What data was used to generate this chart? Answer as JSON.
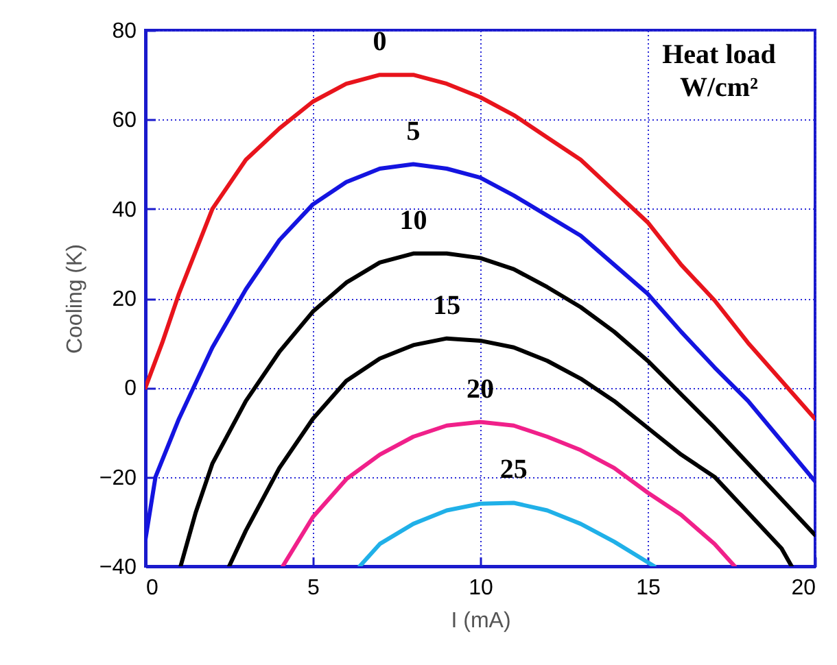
{
  "chart_data": {
    "type": "line",
    "xlabel": "I (mA)",
    "ylabel": "Cooling (K)",
    "xlim": [
      0,
      20
    ],
    "xticks": [
      0,
      5,
      10,
      15,
      20
    ],
    "ylim": [
      -40,
      80
    ],
    "yticks": [
      -40,
      -20,
      0,
      20,
      40,
      60,
      80
    ],
    "grid": true,
    "line_style": "solid",
    "annotations": [
      "Heat load\nW/cm²"
    ],
    "series": [
      {
        "name": "0",
        "color": "#e8141c",
        "x": [
          0,
          0.5,
          1,
          2,
          3,
          4,
          5,
          6,
          7,
          8,
          9,
          10,
          11,
          12,
          13,
          14,
          15,
          16,
          17,
          18,
          19,
          20
        ],
        "values": [
          0,
          10,
          21,
          40,
          51,
          58,
          64,
          68,
          70,
          70,
          68,
          65,
          61,
          56,
          51,
          44,
          37,
          27.5,
          19.5,
          10,
          1.5,
          -7
        ]
      },
      {
        "name": "5",
        "color": "#1414e0",
        "x": [
          0,
          0.3,
          1,
          1.5,
          2,
          3,
          4,
          5,
          6,
          7,
          8,
          9,
          10,
          11,
          12,
          13,
          14,
          15,
          16,
          17,
          18,
          19,
          20
        ],
        "values": [
          -34,
          -20,
          -7,
          1,
          9,
          22,
          33,
          41,
          46,
          49,
          50,
          49,
          47,
          43,
          38.5,
          34,
          27.5,
          21,
          12.5,
          4.5,
          -3,
          -12,
          -21
        ]
      },
      {
        "name": "10",
        "color": "#000000",
        "x": [
          1.05,
          1.5,
          2,
          3,
          4,
          5,
          6,
          7,
          8,
          9,
          10,
          11,
          12,
          13,
          14,
          15,
          16,
          17,
          18,
          19,
          20
        ],
        "values": [
          -40,
          -28,
          -17,
          -3,
          8,
          17,
          23.5,
          28,
          30,
          30,
          29,
          26.5,
          22.5,
          18,
          12.5,
          6,
          -1.5,
          -9,
          -17,
          -25,
          -33
        ]
      },
      {
        "name": "15",
        "color": "#000000",
        "x": [
          2.5,
          3,
          4,
          5,
          6,
          7,
          8,
          9,
          10,
          11,
          12,
          13,
          14,
          15,
          16,
          17,
          18,
          19,
          19.3
        ],
        "values": [
          -40,
          -32,
          -18,
          -7,
          1.5,
          6.5,
          9.5,
          11,
          10.5,
          9,
          6,
          2,
          -3,
          -9,
          -15,
          -20,
          -28,
          -36,
          -40
        ]
      },
      {
        "name": "20",
        "color": "#f0208a",
        "x": [
          4.1,
          5,
          6,
          7,
          8,
          9,
          10,
          11,
          12,
          13,
          14,
          15,
          16,
          17,
          17.6
        ],
        "values": [
          -40,
          -29,
          -20.5,
          -15,
          -11,
          -8.5,
          -7.7,
          -8.5,
          -11,
          -14,
          -18,
          -23.5,
          -28.5,
          -35,
          -40
        ]
      },
      {
        "name": "25",
        "color": "#20b0e8",
        "x": [
          6.4,
          7,
          8,
          9,
          10,
          11,
          12,
          13,
          14,
          15.2
        ],
        "values": [
          -40,
          -35,
          -30.5,
          -27.5,
          -26,
          -25.8,
          -27.5,
          -30.5,
          -34.5,
          -40
        ]
      }
    ]
  }
}
